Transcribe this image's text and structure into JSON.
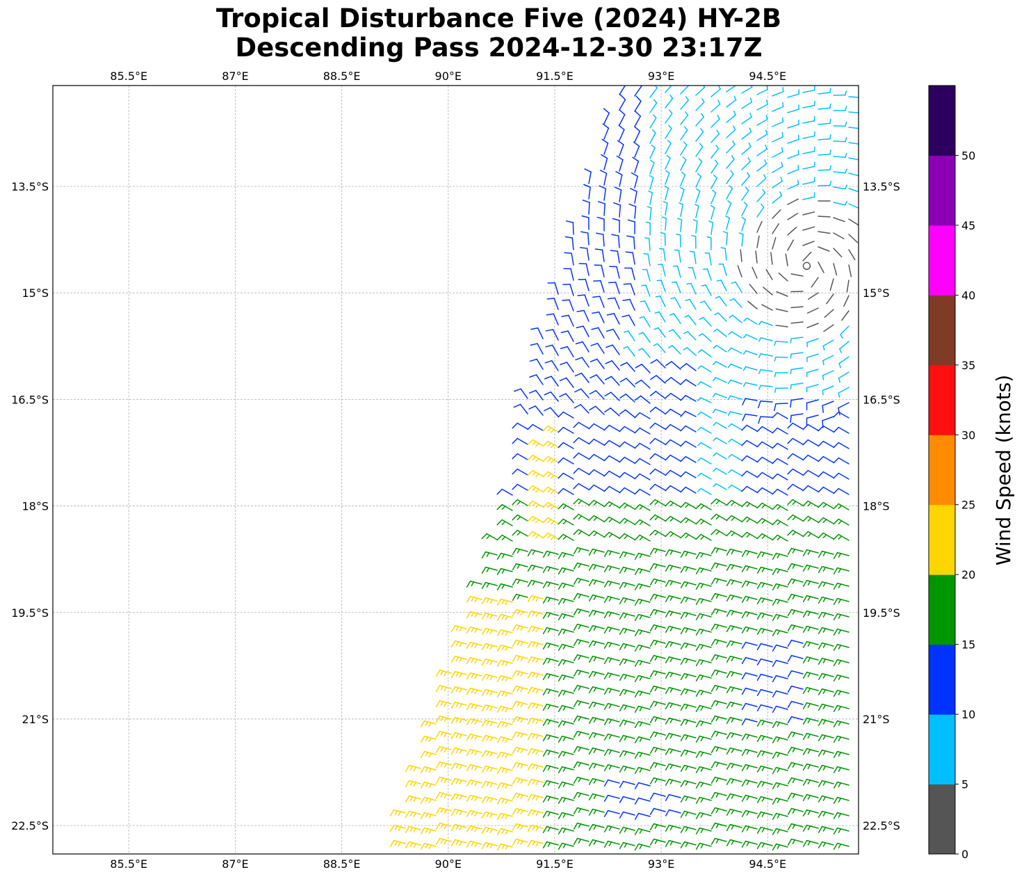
{
  "title": {
    "line1": "Tropical Disturbance Five (2024) HY-2B",
    "line2": "Descending Pass 2024-12-30 23:17Z"
  },
  "map": {
    "lon_range": [
      84.43,
      95.78
    ],
    "lat_range": [
      -22.9,
      -12.08
    ],
    "lon_ticks": [
      {
        "value": 85.5,
        "label": "85.5°E"
      },
      {
        "value": 87,
        "label": "87°E"
      },
      {
        "value": 88.5,
        "label": "88.5°E"
      },
      {
        "value": 90,
        "label": "90°E"
      },
      {
        "value": 91.5,
        "label": "91.5°E"
      },
      {
        "value": 93,
        "label": "93°E"
      },
      {
        "value": 94.5,
        "label": "94.5°E"
      }
    ],
    "lat_ticks": [
      {
        "value": -13.5,
        "label": "13.5°S"
      },
      {
        "value": -15,
        "label": "15°S"
      },
      {
        "value": -16.5,
        "label": "16.5°S"
      },
      {
        "value": -18,
        "label": "18°S"
      },
      {
        "value": -19.5,
        "label": "19.5°S"
      },
      {
        "value": -21,
        "label": "21°S"
      },
      {
        "value": -22.5,
        "label": "22.5°S"
      }
    ],
    "gridlines": true,
    "circulation_center": {
      "lon": 95.05,
      "lat": -14.62
    }
  },
  "colorbar": {
    "label": "Wind Speed (knots)",
    "bounds": [
      0,
      5,
      10,
      15,
      20,
      25,
      30,
      35,
      40,
      45,
      50,
      55
    ],
    "colors": [
      "#555555",
      "#00bfff",
      "#0033ff",
      "#009600",
      "#ffd500",
      "#ff8c00",
      "#ff0f0f",
      "#7f3b26",
      "#ff00ff",
      "#8b00b4",
      "#2d0060"
    ],
    "ticks": [
      {
        "value": 0,
        "label": "0"
      },
      {
        "value": 5,
        "label": "5"
      },
      {
        "value": 10,
        "label": "10"
      },
      {
        "value": 15,
        "label": "15"
      },
      {
        "value": 20,
        "label": "20"
      },
      {
        "value": 25,
        "label": "25"
      },
      {
        "value": 30,
        "label": "30"
      },
      {
        "value": 35,
        "label": "35"
      },
      {
        "value": 40,
        "label": "40"
      },
      {
        "value": 45,
        "label": "45"
      },
      {
        "value": 50,
        "label": "50"
      }
    ]
  }
}
